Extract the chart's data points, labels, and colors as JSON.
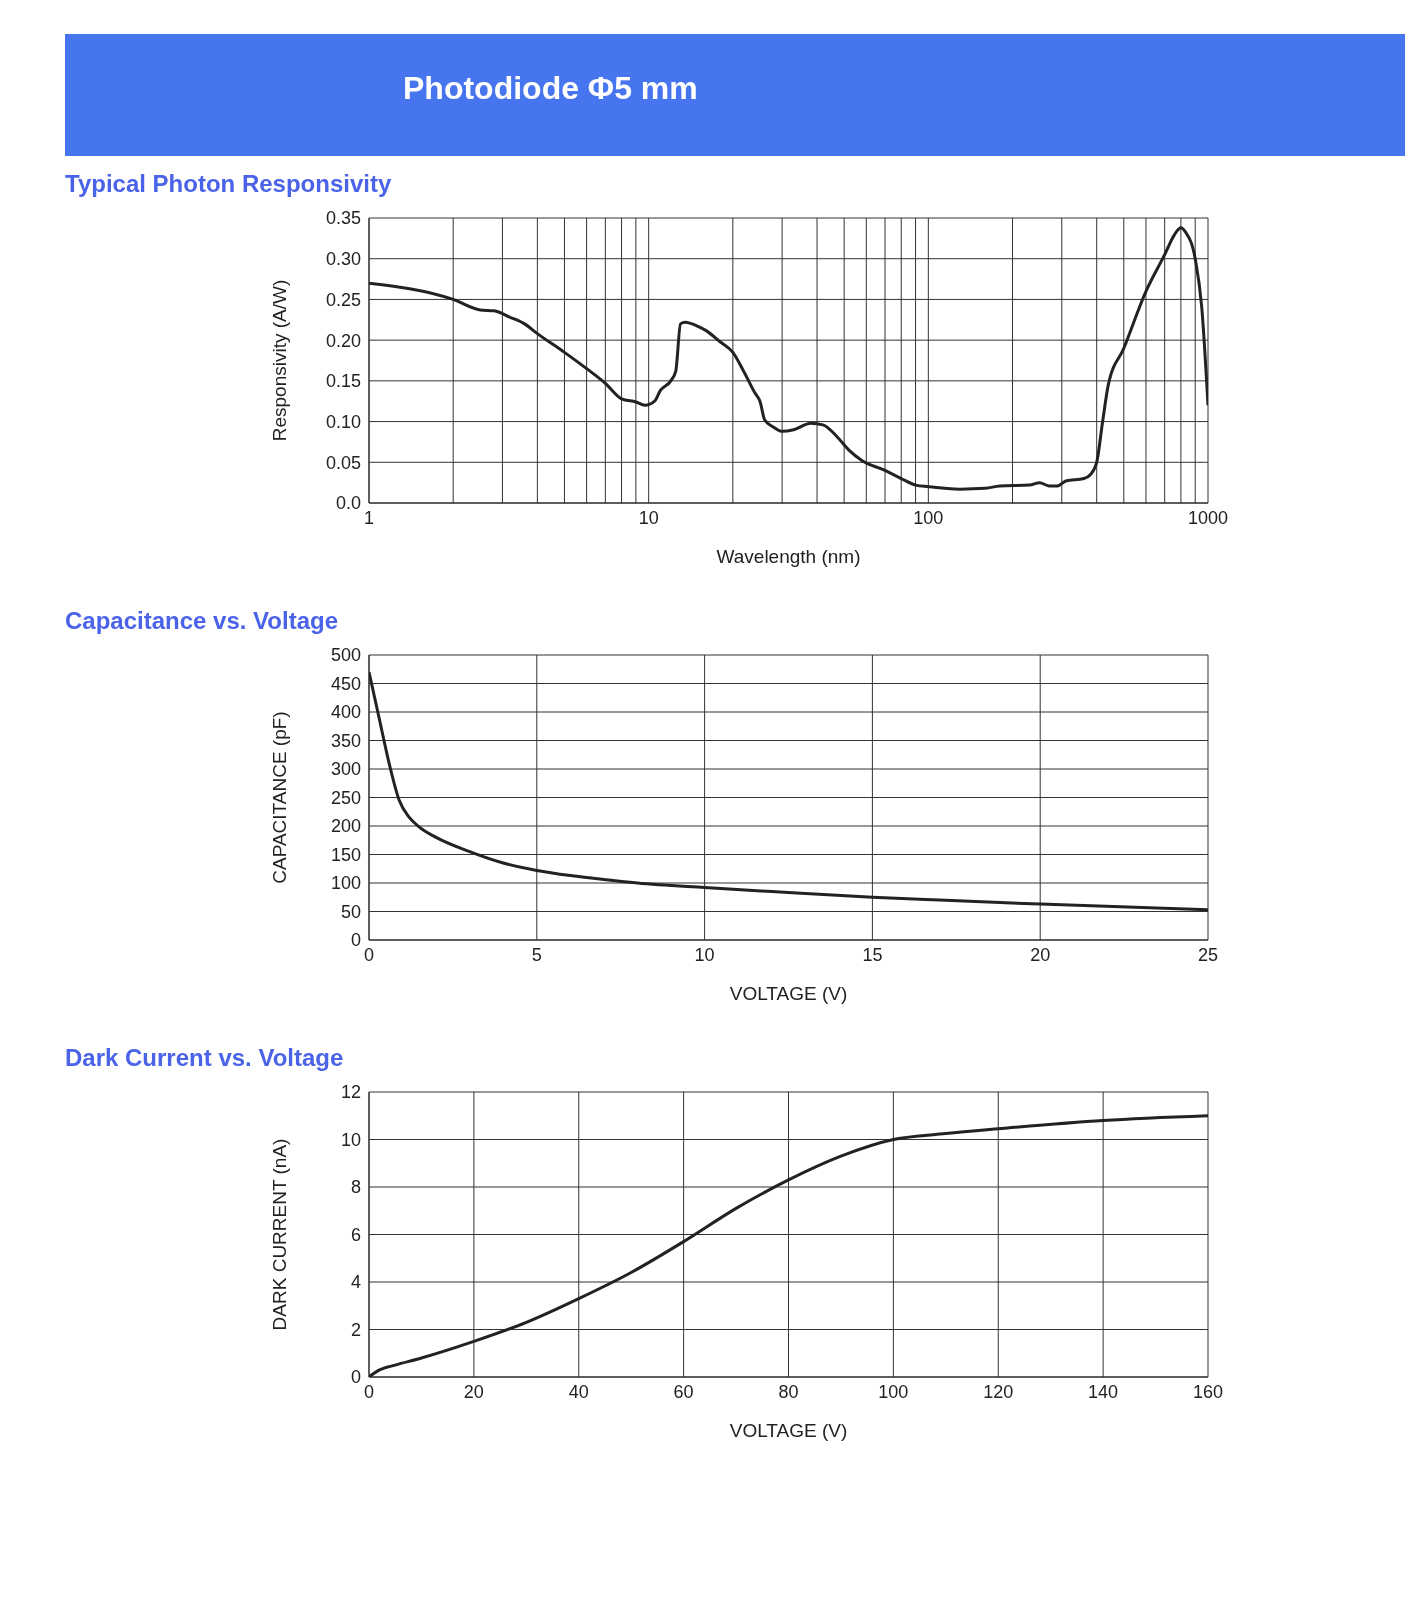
{
  "chart_data": [
    {
      "type": "other",
      "title": "Photodiode Φ5 mm"
    },
    {
      "type": "line",
      "title": "Typical Photon Responsivity",
      "xlabel": "Wavelength (nm)",
      "ylabel": "Responsivity (A/W)",
      "log": "x",
      "grid": true,
      "marker": "none",
      "line_style": "solid",
      "xlim": [
        1,
        1000
      ],
      "ylim": [
        0,
        0.35
      ],
      "xticks": [
        1,
        {
          "value": 2,
          "label": null
        },
        {
          "value": 3,
          "label": null
        },
        {
          "value": 4,
          "label": null
        },
        {
          "value": 5,
          "label": null
        },
        {
          "value": 6,
          "label": null
        },
        {
          "value": 7,
          "label": null
        },
        {
          "value": 8,
          "label": null
        },
        {
          "value": 9,
          "label": null
        },
        10,
        {
          "value": 20,
          "label": null
        },
        {
          "value": 30,
          "label": null
        },
        {
          "value": 40,
          "label": null
        },
        {
          "value": 50,
          "label": null
        },
        {
          "value": 60,
          "label": null
        },
        {
          "value": 70,
          "label": null
        },
        {
          "value": 80,
          "label": null
        },
        {
          "value": 90,
          "label": null
        },
        100,
        {
          "value": 200,
          "label": null
        },
        {
          "value": 300,
          "label": null
        },
        {
          "value": 400,
          "label": null
        },
        {
          "value": 500,
          "label": null
        },
        {
          "value": 600,
          "label": null
        },
        {
          "value": 700,
          "label": null
        },
        {
          "value": 800,
          "label": null
        },
        {
          "value": 900,
          "label": null
        },
        1000
      ],
      "yticks": [
        {
          "value": 0,
          "label": "0.0"
        },
        0.05,
        {
          "value": 0.1,
          "label": "0.10"
        },
        0.15,
        {
          "value": 0.2,
          "label": "0.20"
        },
        0.25,
        {
          "value": 0.3,
          "label": "0.30"
        },
        0.35
      ],
      "x": [
        1,
        2,
        2.5,
        2.8,
        3.2,
        3.6,
        4,
        5,
        6,
        7,
        8,
        9,
        9.7,
        10.5,
        11,
        12,
        12.5,
        13,
        13.5,
        15,
        16,
        18,
        20,
        22,
        24,
        25,
        26,
        28,
        30,
        33,
        38,
        42,
        47,
        52,
        58,
        70,
        80,
        90,
        100,
        130,
        160,
        180,
        230,
        250,
        270,
        290,
        310,
        360,
        380,
        400,
        420,
        440,
        500,
        600,
        700,
        760,
        800,
        830,
        900,
        950,
        1000
      ],
      "series": [
        {
          "color": "#222222",
          "values": [
            0.27,
            0.25,
            0.237,
            0.236,
            0.228,
            0.22,
            0.208,
            0.185,
            0.165,
            0.147,
            0.128,
            0.124,
            0.12,
            0.125,
            0.138,
            0.15,
            0.162,
            0.22,
            0.222,
            0.217,
            0.212,
            0.198,
            0.185,
            0.16,
            0.135,
            0.125,
            0.102,
            0.093,
            0.088,
            0.09,
            0.098,
            0.096,
            0.082,
            0.065,
            0.052,
            0.04,
            0.03,
            0.022,
            0.02,
            0.017,
            0.018,
            0.021,
            0.022,
            0.025,
            0.021,
            0.021,
            0.027,
            0.03,
            0.035,
            0.05,
            0.1,
            0.145,
            0.19,
            0.26,
            0.305,
            0.33,
            0.338,
            0.333,
            0.3,
            0.24,
            0.12
          ]
        }
      ]
    },
    {
      "type": "line",
      "title": "Capacitance vs. Voltage",
      "xlabel": "VOLTAGE (V)",
      "ylabel": "CAPACITANCE (pF)",
      "grid": true,
      "marker": "none",
      "line_style": "solid",
      "xlim": [
        0,
        25
      ],
      "ylim": [
        0,
        500
      ],
      "xticks": [
        0,
        5,
        10,
        15,
        20,
        25
      ],
      "yticks": [
        0,
        50,
        100,
        150,
        200,
        250,
        300,
        350,
        400,
        450,
        500
      ],
      "x": [
        0,
        0.3,
        0.6,
        0.9,
        1.2,
        1.5,
        2,
        3,
        4,
        5,
        6,
        7,
        8,
        10,
        12,
        15,
        17,
        20,
        25
      ],
      "series": [
        {
          "color": "#222222",
          "values": [
            470,
            390,
            310,
            245,
            215,
            198,
            180,
            155,
            135,
            122,
            113,
            106,
            100,
            92,
            85,
            75,
            70,
            63,
            53
          ]
        }
      ]
    },
    {
      "type": "line",
      "title": "Dark Current vs. Voltage",
      "xlabel": "VOLTAGE (V)",
      "ylabel": "DARK CURRENT (nA)",
      "grid": true,
      "marker": "none",
      "line_style": "solid",
      "xlim": [
        0,
        160
      ],
      "ylim": [
        0,
        12
      ],
      "xticks": [
        0,
        20,
        40,
        60,
        80,
        100,
        120,
        140,
        160
      ],
      "yticks": [
        0,
        2,
        4,
        6,
        8,
        10,
        12
      ],
      "x": [
        0,
        2,
        5,
        10,
        20,
        30,
        40,
        50,
        60,
        70,
        80,
        90,
        100,
        110,
        120,
        140,
        160
      ],
      "series": [
        {
          "color": "#222222",
          "values": [
            0,
            0.3,
            0.5,
            0.8,
            1.5,
            2.3,
            3.3,
            4.4,
            5.7,
            7.1,
            8.3,
            9.3,
            10,
            10.25,
            10.45,
            10.8,
            11
          ]
        }
      ]
    }
  ]
}
